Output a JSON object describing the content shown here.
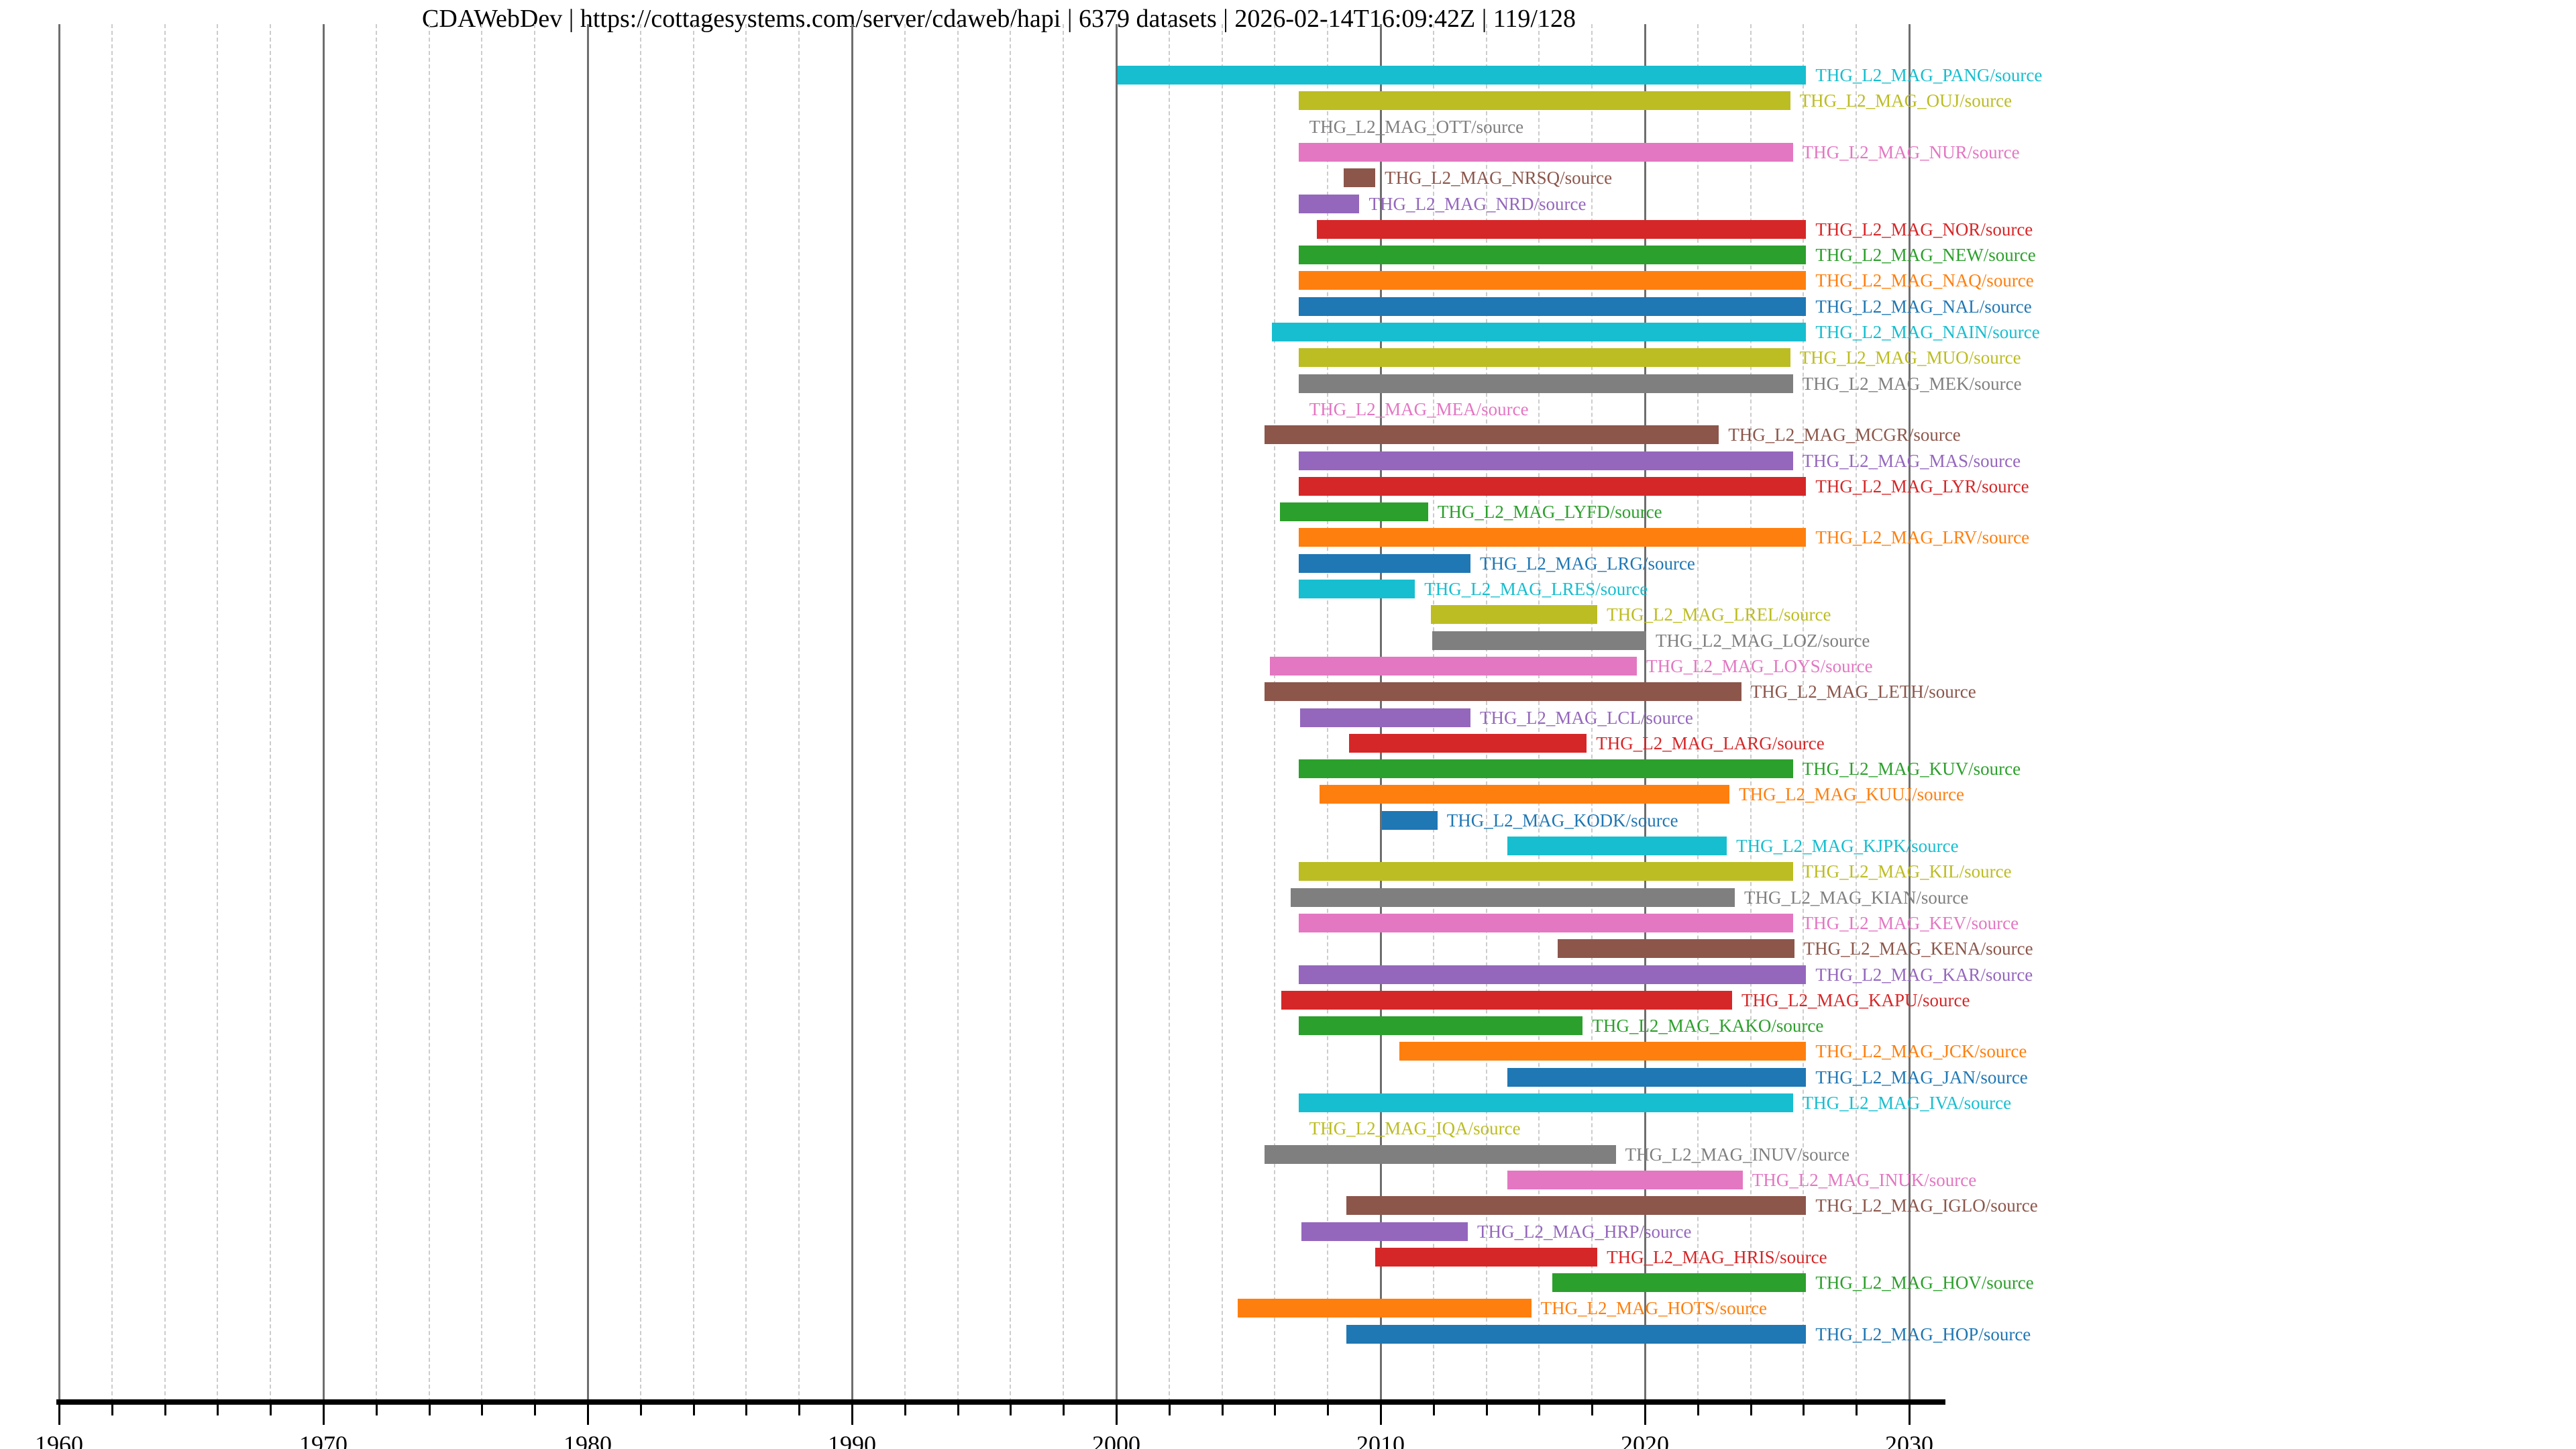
{
  "title": "CDAWebDev | https://cottagesystems.com/server/cdaweb/hapi | 6379 datasets | 2026-02-14T16:09:42Z | 119/128",
  "colors": {
    "cyan": "#17becf",
    "olive": "#bcbd22",
    "gray": "#7f7f7f",
    "pink": "#e377c2",
    "brown": "#8c564b",
    "purple": "#9467bd",
    "red": "#d62728",
    "green": "#2ca02c",
    "orange": "#ff7f0e",
    "blue": "#1f77b4"
  },
  "axis": {
    "xlim": [
      1960,
      2033
    ],
    "major_ticks": [
      1960,
      1970,
      1980,
      1990,
      2000,
      2010,
      2020,
      2030
    ],
    "major_tick_labels": [
      "1960",
      "1970",
      "1980",
      "1990",
      "2000",
      "2010",
      "2020",
      "2030"
    ],
    "minor_tick_step_years": 2,
    "grid": "on",
    "legend": "none"
  },
  "chart_data": {
    "type": "bar",
    "orientation": "horizontal-timeline",
    "title": "CDAWebDev | https://cottagesystems.com/server/cdaweb/hapi | 6379 datasets | 2026-02-14T16:09:42Z | 119/128",
    "xlabel": "",
    "ylabel": "",
    "xlim": [
      1960,
      2033
    ],
    "rows": [
      {
        "label": "THG_L2_MAG_PANG/source",
        "color": "cyan",
        "start": 2000.05,
        "end": 2026.1
      },
      {
        "label": "THG_L2_MAG_OUJ/source",
        "color": "olive",
        "start": 2006.9,
        "end": 2025.5
      },
      {
        "label": "THG_L2_MAG_OTT/source",
        "color": "gray",
        "start": null,
        "end": null,
        "label_year": 2007.3
      },
      {
        "label": "THG_L2_MAG_NUR/source",
        "color": "pink",
        "start": 2006.9,
        "end": 2025.6
      },
      {
        "label": "THG_L2_MAG_NRSQ/source",
        "color": "brown",
        "start": 2008.6,
        "end": 2009.8
      },
      {
        "label": "THG_L2_MAG_NRD/source",
        "color": "purple",
        "start": 2006.9,
        "end": 2009.2
      },
      {
        "label": "THG_L2_MAG_NOR/source",
        "color": "red",
        "start": 2007.6,
        "end": 2026.1
      },
      {
        "label": "THG_L2_MAG_NEW/source",
        "color": "green",
        "start": 2006.9,
        "end": 2026.1
      },
      {
        "label": "THG_L2_MAG_NAQ/source",
        "color": "orange",
        "start": 2006.9,
        "end": 2026.1
      },
      {
        "label": "THG_L2_MAG_NAL/source",
        "color": "blue",
        "start": 2006.9,
        "end": 2026.1
      },
      {
        "label": "THG_L2_MAG_NAIN/source",
        "color": "cyan",
        "start": 2005.9,
        "end": 2026.1
      },
      {
        "label": "THG_L2_MAG_MUO/source",
        "color": "olive",
        "start": 2006.9,
        "end": 2025.5
      },
      {
        "label": "THG_L2_MAG_MEK/source",
        "color": "gray",
        "start": 2006.9,
        "end": 2025.6
      },
      {
        "label": "THG_L2_MAG_MEA/source",
        "color": "pink",
        "start": null,
        "end": null,
        "label_year": 2007.3
      },
      {
        "label": "THG_L2_MAG_MCGR/source",
        "color": "brown",
        "start": 2005.6,
        "end": 2022.8
      },
      {
        "label": "THG_L2_MAG_MAS/source",
        "color": "purple",
        "start": 2006.9,
        "end": 2025.6
      },
      {
        "label": "THG_L2_MAG_LYR/source",
        "color": "red",
        "start": 2006.9,
        "end": 2026.1
      },
      {
        "label": "THG_L2_MAG_LYFD/source",
        "color": "green",
        "start": 2006.2,
        "end": 2011.8
      },
      {
        "label": "THG_L2_MAG_LRV/source",
        "color": "orange",
        "start": 2006.9,
        "end": 2026.1
      },
      {
        "label": "THG_L2_MAG_LRG/source",
        "color": "blue",
        "start": 2006.9,
        "end": 2013.4
      },
      {
        "label": "THG_L2_MAG_LRES/source",
        "color": "cyan",
        "start": 2006.9,
        "end": 2011.3
      },
      {
        "label": "THG_L2_MAG_LREL/source",
        "color": "olive",
        "start": 2011.9,
        "end": 2018.2
      },
      {
        "label": "THG_L2_MAG_LOZ/source",
        "color": "gray",
        "start": 2011.95,
        "end": 2020.05
      },
      {
        "label": "THG_L2_MAG_LOYS/source",
        "color": "pink",
        "start": 2005.8,
        "end": 2019.7
      },
      {
        "label": "THG_L2_MAG_LETH/source",
        "color": "brown",
        "start": 2005.6,
        "end": 2023.65
      },
      {
        "label": "THG_L2_MAG_LCL/source",
        "color": "purple",
        "start": 2006.95,
        "end": 2013.4
      },
      {
        "label": "THG_L2_MAG_LARG/source",
        "color": "red",
        "start": 2008.8,
        "end": 2017.8
      },
      {
        "label": "THG_L2_MAG_KUV/source",
        "color": "green",
        "start": 2006.9,
        "end": 2025.6
      },
      {
        "label": "THG_L2_MAG_KUUJ/source",
        "color": "orange",
        "start": 2007.7,
        "end": 2023.2
      },
      {
        "label": "THG_L2_MAG_KODK/source",
        "color": "blue",
        "start": 2010.05,
        "end": 2012.15
      },
      {
        "label": "THG_L2_MAG_KJPK/source",
        "color": "cyan",
        "start": 2014.8,
        "end": 2023.1
      },
      {
        "label": "THG_L2_MAG_KIL/source",
        "color": "olive",
        "start": 2006.9,
        "end": 2025.6
      },
      {
        "label": "THG_L2_MAG_KIAN/source",
        "color": "gray",
        "start": 2006.6,
        "end": 2023.4
      },
      {
        "label": "THG_L2_MAG_KEV/source",
        "color": "pink",
        "start": 2006.9,
        "end": 2025.6
      },
      {
        "label": "THG_L2_MAG_KENA/source",
        "color": "brown",
        "start": 2016.7,
        "end": 2025.65
      },
      {
        "label": "THG_L2_MAG_KAR/source",
        "color": "purple",
        "start": 2006.9,
        "end": 2026.1
      },
      {
        "label": "THG_L2_MAG_KAPU/source",
        "color": "red",
        "start": 2006.25,
        "end": 2023.3
      },
      {
        "label": "THG_L2_MAG_KAKO/source",
        "color": "green",
        "start": 2006.9,
        "end": 2017.65
      },
      {
        "label": "THG_L2_MAG_JCK/source",
        "color": "orange",
        "start": 2010.7,
        "end": 2026.1
      },
      {
        "label": "THG_L2_MAG_JAN/source",
        "color": "blue",
        "start": 2014.8,
        "end": 2026.1
      },
      {
        "label": "THG_L2_MAG_IVA/source",
        "color": "cyan",
        "start": 2006.9,
        "end": 2025.6
      },
      {
        "label": "THG_L2_MAG_IQA/source",
        "color": "olive",
        "start": null,
        "end": null,
        "label_year": 2007.3
      },
      {
        "label": "THG_L2_MAG_INUV/source",
        "color": "gray",
        "start": 2005.6,
        "end": 2018.9
      },
      {
        "label": "THG_L2_MAG_INUK/source",
        "color": "pink",
        "start": 2014.8,
        "end": 2023.7
      },
      {
        "label": "THG_L2_MAG_IGLO/source",
        "color": "brown",
        "start": 2008.7,
        "end": 2026.1
      },
      {
        "label": "THG_L2_MAG_HRP/source",
        "color": "purple",
        "start": 2007.0,
        "end": 2013.3
      },
      {
        "label": "THG_L2_MAG_HRIS/source",
        "color": "red",
        "start": 2009.8,
        "end": 2018.2
      },
      {
        "label": "THG_L2_MAG_HOV/source",
        "color": "green",
        "start": 2016.5,
        "end": 2026.1
      },
      {
        "label": "THG_L2_MAG_HOTS/source",
        "color": "orange",
        "start": 2004.6,
        "end": 2015.7
      },
      {
        "label": "THG_L2_MAG_HOP/source",
        "color": "blue",
        "start": 2008.7,
        "end": 2026.1
      }
    ]
  }
}
